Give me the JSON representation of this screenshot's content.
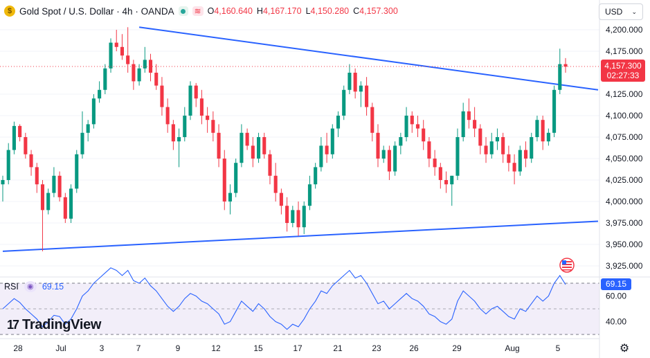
{
  "legend": {
    "symbol_icon": "dollar-coin-icon",
    "symbol_icon_glyph": "$",
    "symbol": "Gold Spot / U.S. Dollar · 4h · OANDA",
    "o_key": "O",
    "o_val": "4,160.640",
    "h_key": "H",
    "h_val": "4,167.170",
    "l_key": "L",
    "l_val": "4,150.280",
    "c_key": "C",
    "c_val": "4,157.300"
  },
  "currency": {
    "label": "USD"
  },
  "price_axis": {
    "labels": [
      "4,200.000",
      "4,175.000",
      "4,125.000",
      "4,100.000",
      "4,075.000",
      "4,050.000",
      "4,025.000",
      "4,000.000",
      "3,975.000",
      "3,950.000",
      "3,925.000"
    ],
    "values": [
      4200,
      4175,
      4125,
      4100,
      4075,
      4050,
      4025,
      4000,
      3975,
      3950,
      3925
    ],
    "last_price": "4,157.300",
    "countdown": "02:27:33"
  },
  "rsi": {
    "label": "RSI",
    "value": "69.15",
    "axis_labels": [
      "60.00",
      "40.00"
    ],
    "axis_values": [
      60,
      40
    ]
  },
  "time_axis": {
    "labels": [
      "28",
      "Jul",
      "3",
      "7",
      "9",
      "12",
      "15",
      "17",
      "21",
      "23",
      "26",
      "29",
      "Aug",
      "5"
    ]
  },
  "branding": {
    "name": "TradingView"
  },
  "chart_data": {
    "type": "candlestick",
    "timeframe": "4h",
    "y_range": [
      3920,
      4210
    ],
    "up_color": "#089981",
    "down_color": "#f23645",
    "trendline_color": "#2962ff",
    "trendlines": [
      {
        "from": [
          24,
          4203
        ],
        "to": [
          125,
          4130
        ]
      },
      {
        "from": [
          0,
          3942
        ],
        "to": [
          125,
          3977
        ]
      }
    ],
    "last_price": 4157.3,
    "candles": [
      [
        4020,
        4030,
        4000,
        4025
      ],
      [
        4025,
        4068,
        4020,
        4060
      ],
      [
        4060,
        4093,
        4055,
        4088
      ],
      [
        4088,
        4090,
        4070,
        4075
      ],
      [
        4075,
        4080,
        4050,
        4055
      ],
      [
        4055,
        4060,
        4030,
        4040
      ],
      [
        4040,
        4045,
        4010,
        4020
      ],
      [
        4020,
        4025,
        3942,
        3990
      ],
      [
        3990,
        4015,
        3985,
        4010
      ],
      [
        4010,
        4040,
        4005,
        4030
      ],
      [
        4030,
        4035,
        4000,
        4005
      ],
      [
        4005,
        4010,
        3975,
        3980
      ],
      [
        3980,
        4020,
        3975,
        4015
      ],
      [
        4015,
        4060,
        4010,
        4055
      ],
      [
        4055,
        4105,
        4050,
        4080
      ],
      [
        4080,
        4095,
        4070,
        4090
      ],
      [
        4090,
        4125,
        4085,
        4120
      ],
      [
        4120,
        4140,
        4115,
        4130
      ],
      [
        4130,
        4160,
        4125,
        4155
      ],
      [
        4155,
        4190,
        4150,
        4185
      ],
      [
        4185,
        4200,
        4175,
        4180
      ],
      [
        4180,
        4195,
        4165,
        4170
      ],
      [
        4170,
        4203,
        4150,
        4160
      ],
      [
        4160,
        4165,
        4130,
        4140
      ],
      [
        4140,
        4160,
        4135,
        4155
      ],
      [
        4155,
        4180,
        4150,
        4165
      ],
      [
        4165,
        4172,
        4140,
        4150
      ],
      [
        4150,
        4160,
        4130,
        4135
      ],
      [
        4135,
        4145,
        4100,
        4110
      ],
      [
        4110,
        4120,
        4080,
        4090
      ],
      [
        4090,
        4095,
        4060,
        4070
      ],
      [
        4070,
        4085,
        4040,
        4075
      ],
      [
        4075,
        4110,
        4070,
        4100
      ],
      [
        4100,
        4140,
        4095,
        4135
      ],
      [
        4135,
        4138,
        4110,
        4120
      ],
      [
        4120,
        4130,
        4090,
        4100
      ],
      [
        4100,
        4110,
        4080,
        4095
      ],
      [
        4095,
        4105,
        4070,
        4080
      ],
      [
        4080,
        4090,
        4040,
        4050
      ],
      [
        4050,
        4060,
        3990,
        4000
      ],
      [
        4000,
        4020,
        3985,
        4010
      ],
      [
        4010,
        4050,
        4005,
        4045
      ],
      [
        4045,
        4090,
        4040,
        4080
      ],
      [
        4080,
        4085,
        4060,
        4065
      ],
      [
        4065,
        4075,
        4040,
        4050
      ],
      [
        4050,
        4080,
        4045,
        4075
      ],
      [
        4075,
        4080,
        4050,
        4055
      ],
      [
        4055,
        4060,
        4020,
        4030
      ],
      [
        4030,
        4045,
        4000,
        4010
      ],
      [
        4010,
        4015,
        3985,
        3995
      ],
      [
        3995,
        4005,
        3965,
        3975
      ],
      [
        3975,
        3995,
        3970,
        3990
      ],
      [
        3990,
        4000,
        3960,
        3970
      ],
      [
        3970,
        4000,
        3962,
        3995
      ],
      [
        3995,
        4030,
        3990,
        4020
      ],
      [
        4020,
        4045,
        4015,
        4040
      ],
      [
        4040,
        4075,
        4035,
        4065
      ],
      [
        4065,
        4080,
        4045,
        4055
      ],
      [
        4055,
        4090,
        4050,
        4085
      ],
      [
        4085,
        4105,
        4075,
        4100
      ],
      [
        4100,
        4135,
        4095,
        4130
      ],
      [
        4130,
        4160,
        4125,
        4150
      ],
      [
        4150,
        4155,
        4120,
        4128
      ],
      [
        4128,
        4140,
        4110,
        4135
      ],
      [
        4135,
        4145,
        4100,
        4110
      ],
      [
        4110,
        4115,
        4070,
        4080
      ],
      [
        4080,
        4090,
        4040,
        4050
      ],
      [
        4050,
        4065,
        4045,
        4060
      ],
      [
        4060,
        4065,
        4025,
        4035
      ],
      [
        4035,
        4070,
        4030,
        4065
      ],
      [
        4065,
        4080,
        4055,
        4075
      ],
      [
        4075,
        4110,
        4070,
        4100
      ],
      [
        4100,
        4105,
        4080,
        4090
      ],
      [
        4090,
        4100,
        4075,
        4085
      ],
      [
        4085,
        4095,
        4060,
        4070
      ],
      [
        4070,
        4075,
        4040,
        4050
      ],
      [
        4050,
        4060,
        4030,
        4040
      ],
      [
        4040,
        4045,
        4015,
        4025
      ],
      [
        4025,
        4035,
        4010,
        4020
      ],
      [
        4020,
        4030,
        3995,
        4030
      ],
      [
        4030,
        4085,
        4025,
        4075
      ],
      [
        4075,
        4115,
        4070,
        4105
      ],
      [
        4105,
        4120,
        4085,
        4095
      ],
      [
        4095,
        4110,
        4075,
        4085
      ],
      [
        4085,
        4090,
        4055,
        4065
      ],
      [
        4065,
        4075,
        4045,
        4055
      ],
      [
        4055,
        4080,
        4050,
        4070
      ],
      [
        4070,
        4085,
        4060,
        4075
      ],
      [
        4075,
        4080,
        4045,
        4055
      ],
      [
        4055,
        4065,
        4035,
        4045
      ],
      [
        4045,
        4055,
        4020,
        4035
      ],
      [
        4035,
        4065,
        4030,
        4060
      ],
      [
        4060,
        4070,
        4040,
        4050
      ],
      [
        4050,
        4080,
        4045,
        4075
      ],
      [
        4075,
        4100,
        4070,
        4095
      ],
      [
        4095,
        4100,
        4060,
        4070
      ],
      [
        4070,
        4085,
        4065,
        4080
      ],
      [
        4080,
        4135,
        4075,
        4130
      ],
      [
        4130,
        4178,
        4125,
        4160
      ],
      [
        4160,
        4167,
        4150,
        4157
      ]
    ],
    "rsi_values": [
      50,
      54,
      58,
      55,
      50,
      46,
      42,
      36,
      40,
      45,
      44,
      38,
      42,
      50,
      60,
      64,
      70,
      74,
      78,
      82,
      80,
      76,
      80,
      72,
      70,
      74,
      68,
      64,
      58,
      52,
      48,
      52,
      58,
      62,
      60,
      56,
      54,
      50,
      46,
      38,
      40,
      48,
      56,
      52,
      48,
      54,
      50,
      44,
      40,
      38,
      34,
      38,
      36,
      42,
      50,
      56,
      64,
      62,
      68,
      72,
      76,
      80,
      74,
      76,
      70,
      62,
      54,
      56,
      50,
      54,
      58,
      62,
      58,
      56,
      52,
      46,
      44,
      40,
      38,
      42,
      56,
      64,
      60,
      56,
      50,
      46,
      50,
      52,
      48,
      44,
      42,
      50,
      48,
      54,
      60,
      56,
      60,
      70,
      76,
      69
    ]
  }
}
